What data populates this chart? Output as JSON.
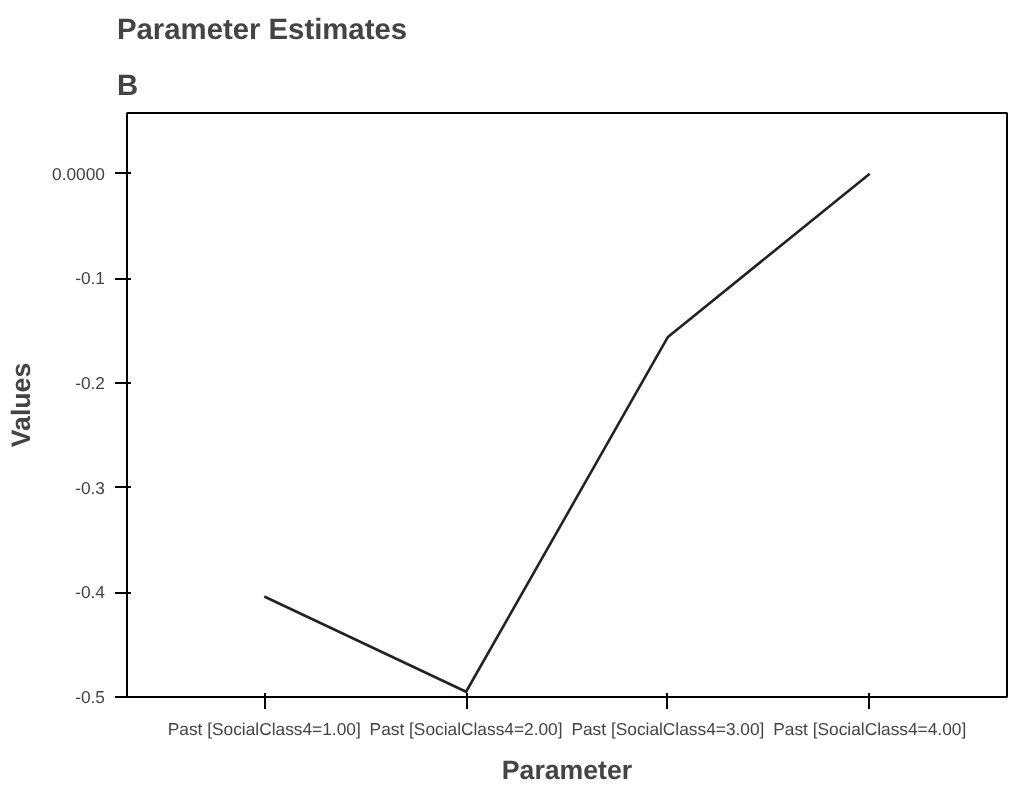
{
  "chart_data": {
    "type": "line",
    "title": "Parameter Estimates",
    "subtitle": "B",
    "xlabel": "Parameter",
    "ylabel": "Values",
    "categories": [
      "Past [SocialClass4=1.00]",
      "Past [SocialClass4=2.00]",
      "Past [SocialClass4=3.00]",
      "Past [SocialClass4=4.00]"
    ],
    "series": [
      {
        "color": "#222222",
        "values": [
          -0.404,
          -0.495,
          -0.156,
          0.0
        ]
      }
    ],
    "ylim": [
      -0.5,
      0.058
    ],
    "yticks": [
      {
        "value": 0,
        "label": "0.0000"
      },
      -0.1,
      -0.2,
      -0.3,
      -0.4,
      -0.5
    ],
    "line_style": "solid"
  }
}
